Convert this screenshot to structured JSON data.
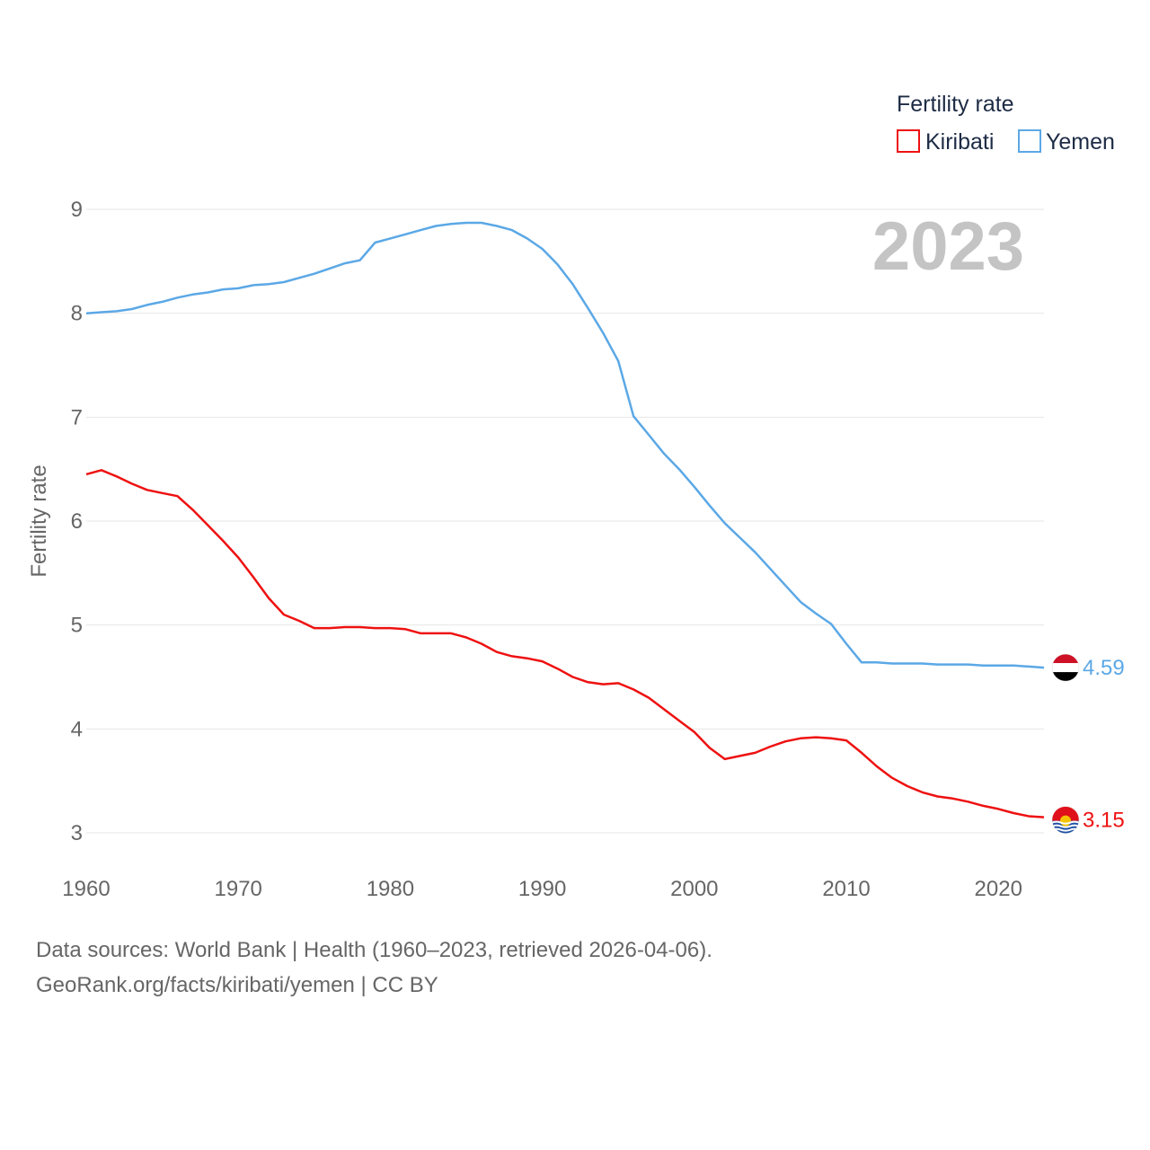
{
  "chart_data": {
    "type": "line",
    "title": "Fertility rate",
    "xlabel": "",
    "ylabel": "Fertility rate",
    "xlim": [
      1960,
      2023
    ],
    "ylim": [
      3,
      9
    ],
    "x_ticks": [
      1960,
      1970,
      1980,
      1990,
      2000,
      2010,
      2020
    ],
    "y_ticks": [
      3,
      4,
      5,
      6,
      7,
      8,
      9
    ],
    "grid": true,
    "current_year": "2023",
    "legend": {
      "title": "Fertility rate",
      "position": "top-right"
    },
    "x": [
      1960,
      1961,
      1962,
      1963,
      1964,
      1965,
      1966,
      1967,
      1968,
      1969,
      1970,
      1971,
      1972,
      1973,
      1974,
      1975,
      1976,
      1977,
      1978,
      1979,
      1980,
      1981,
      1982,
      1983,
      1984,
      1985,
      1986,
      1987,
      1988,
      1989,
      1990,
      1991,
      1992,
      1993,
      1994,
      1995,
      1996,
      1997,
      1998,
      1999,
      2000,
      2001,
      2002,
      2003,
      2004,
      2005,
      2006,
      2007,
      2008,
      2009,
      2010,
      2011,
      2012,
      2013,
      2014,
      2015,
      2016,
      2017,
      2018,
      2019,
      2020,
      2021,
      2022,
      2023
    ],
    "series": [
      {
        "name": "Kiribati",
        "color": "#ee1111",
        "flag": "kiribati-flag-icon",
        "end_label": "3.15",
        "values": [
          6.45,
          6.49,
          6.43,
          6.36,
          6.3,
          6.27,
          6.24,
          6.11,
          5.96,
          5.81,
          5.65,
          5.46,
          5.26,
          5.1,
          5.04,
          4.97,
          4.97,
          4.98,
          4.98,
          4.97,
          4.97,
          4.96,
          4.92,
          4.92,
          4.92,
          4.88,
          4.82,
          4.74,
          4.7,
          4.68,
          4.65,
          4.58,
          4.5,
          4.45,
          4.43,
          4.44,
          4.38,
          4.3,
          4.19,
          4.08,
          3.97,
          3.82,
          3.71,
          3.74,
          3.77,
          3.83,
          3.88,
          3.91,
          3.92,
          3.91,
          3.89,
          3.77,
          3.64,
          3.53,
          3.45,
          3.39,
          3.35,
          3.33,
          3.3,
          3.26,
          3.23,
          3.19,
          3.16,
          3.15
        ]
      },
      {
        "name": "Yemen",
        "color": "#5ba8e6",
        "flag": "yemen-flag-icon",
        "end_label": "4.59",
        "values": [
          8.0,
          8.01,
          8.02,
          8.04,
          8.08,
          8.11,
          8.15,
          8.18,
          8.2,
          8.23,
          8.24,
          8.27,
          8.28,
          8.3,
          8.34,
          8.38,
          8.43,
          8.48,
          8.51,
          8.68,
          8.72,
          8.76,
          8.8,
          8.84,
          8.86,
          8.87,
          8.87,
          8.84,
          8.8,
          8.72,
          8.62,
          8.47,
          8.28,
          8.05,
          7.81,
          7.54,
          7.01,
          6.83,
          6.65,
          6.5,
          6.33,
          6.15,
          5.98,
          5.84,
          5.7,
          5.54,
          5.38,
          5.22,
          5.11,
          5.01,
          4.82,
          4.64,
          4.64,
          4.63,
          4.63,
          4.63,
          4.62,
          4.62,
          4.62,
          4.61,
          4.61,
          4.61,
          4.6,
          4.59
        ]
      }
    ]
  },
  "footer": {
    "line1": "Data sources: World Bank | Health (1960–2023, retrieved 2026-04-06).",
    "line2": "GeoRank.org/facts/kiribati/yemen | CC BY"
  }
}
